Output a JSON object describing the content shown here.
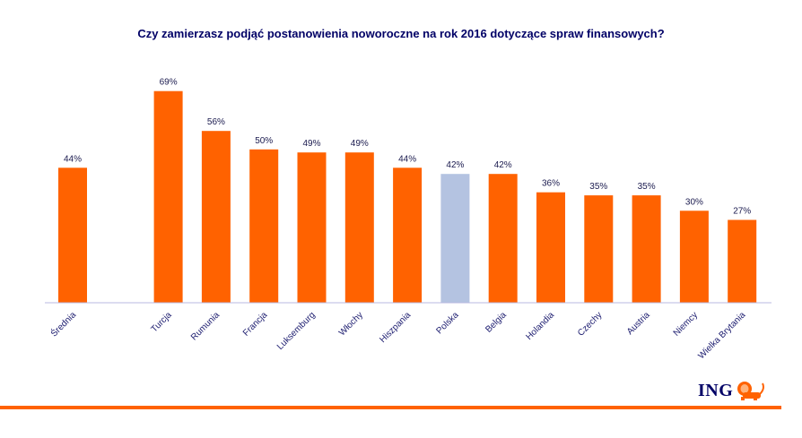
{
  "chart_data": {
    "type": "bar",
    "title": "Czy zamierzasz podjąć postanowienia noworoczne na rok 2016 dotyczące spraw finansowych?",
    "xlabel": "",
    "ylabel": "",
    "ylim": [
      0,
      70
    ],
    "grid": false,
    "legend": "none",
    "categories": [
      "Średnia",
      "",
      "Turcja",
      "Rumunia",
      "Francja",
      "Luksemburg",
      "Włochy",
      "Hiszpania",
      "Polska",
      "Belgia",
      "Holandia",
      "Czechy",
      "Austria",
      "Niemcy",
      "Wielka Brytania"
    ],
    "values": [
      44,
      null,
      69,
      56,
      50,
      49,
      49,
      44,
      42,
      42,
      36,
      35,
      35,
      30,
      27
    ],
    "value_labels": [
      "44%",
      "",
      "69%",
      "56%",
      "50%",
      "49%",
      "49%",
      "44%",
      "42%",
      "42%",
      "36%",
      "35%",
      "35%",
      "30%",
      "27%"
    ],
    "highlight_category": "Polska",
    "colors": {
      "default_bar": "#ff6200",
      "highlight_bar": "#b4c3e1",
      "axis": "#b8b8e0",
      "label_text": "#1a1a6e"
    }
  },
  "branding": {
    "logo_text": "ING",
    "logo_icon": "lion-icon",
    "accent_color": "#ff6200"
  }
}
